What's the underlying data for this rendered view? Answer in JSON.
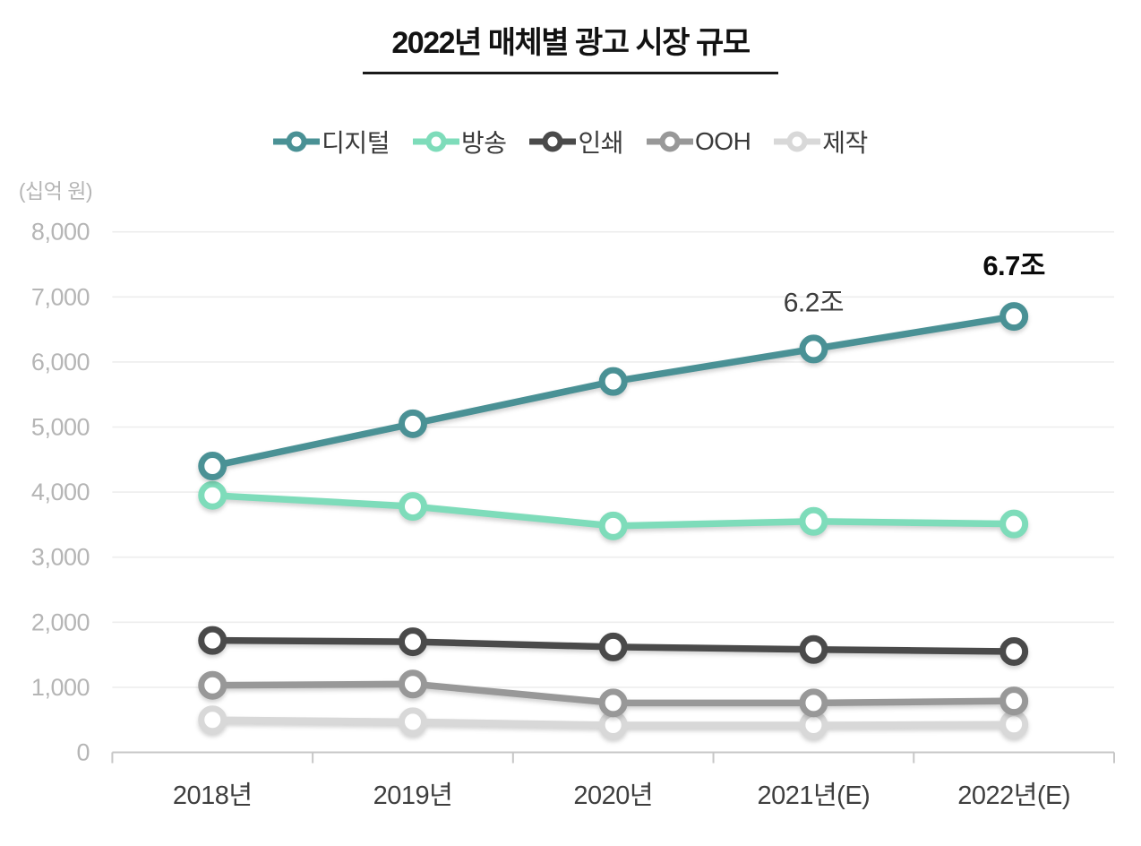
{
  "title": "2022년 매체별 광고 시장 규모",
  "colors": {
    "background": "#ffffff",
    "title": "#121212",
    "title_underline": "#1a1a1a",
    "legend_text": "#3a3a3a",
    "gridline": "#ededed",
    "axis_line": "#c7c7c7",
    "y_tick_label": "#b5b5b5",
    "x_tick_label": "#3e3e3e",
    "annotation": "#3c3c3c",
    "annotation_bold": "#0b0b0b"
  },
  "chart_data": {
    "type": "line",
    "title": "2022년 매체별 광고 시장 규모",
    "y_unit": "(십억 원)",
    "categories": [
      "2018년",
      "2019년",
      "2020년",
      "2021년(E)",
      "2022년(E)"
    ],
    "series": [
      {
        "id": "digital",
        "name": "디지털",
        "color": "#4a9195",
        "values": [
          4400,
          5050,
          5700,
          6200,
          6700
        ]
      },
      {
        "id": "broadcast",
        "name": "방송",
        "color": "#7edcba",
        "values": [
          3950,
          3780,
          3480,
          3550,
          3510
        ]
      },
      {
        "id": "print",
        "name": "인쇄",
        "color": "#4a4a4a",
        "values": [
          1720,
          1700,
          1620,
          1580,
          1550
        ]
      },
      {
        "id": "ooh",
        "name": "OOH",
        "color": "#989898",
        "values": [
          1030,
          1050,
          760,
          760,
          790
        ]
      },
      {
        "id": "production",
        "name": "제작",
        "color": "#d8d8d8",
        "values": [
          500,
          470,
          420,
          420,
          430
        ]
      }
    ],
    "annotations": [
      {
        "text": "6.2조",
        "series": "digital",
        "category_index": 3,
        "dy": -42,
        "bold": false
      },
      {
        "text": "6.7조",
        "series": "digital",
        "category_index": 4,
        "dy": -46,
        "bold": true
      }
    ],
    "ylim": [
      0,
      8000
    ],
    "y_ticks": [
      0,
      1000,
      2000,
      3000,
      4000,
      5000,
      6000,
      7000,
      8000
    ],
    "y_tick_labels": [
      "0",
      "1,000",
      "2,000",
      "3,000",
      "4,000",
      "5,000",
      "6,000",
      "7,000",
      "8,000"
    ],
    "grid": true,
    "legend_position": "top"
  }
}
